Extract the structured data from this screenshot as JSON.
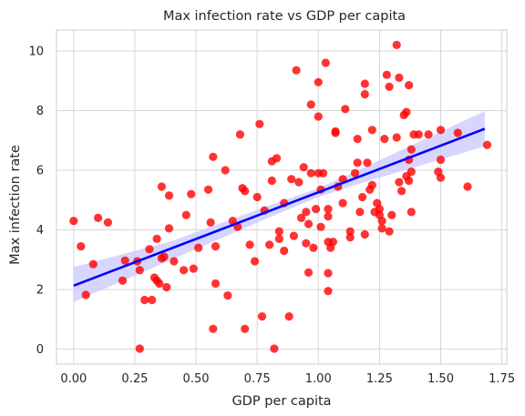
{
  "chart_data": {
    "type": "scatter",
    "title": "Max infection rate vs GDP per capita",
    "xlabel": "GDP per capita",
    "ylabel": "Max infection rate",
    "xlim": [
      -0.07,
      1.77
    ],
    "ylim": [
      -0.5,
      10.7
    ],
    "xticks": [
      0.0,
      0.25,
      0.5,
      0.75,
      1.0,
      1.25,
      1.5,
      1.75
    ],
    "xtick_labels": [
      "0.00",
      "0.25",
      "0.50",
      "0.75",
      "1.00",
      "1.25",
      "1.50",
      "1.75"
    ],
    "yticks": [
      0,
      2,
      4,
      6,
      8,
      10
    ],
    "ytick_labels": [
      "0",
      "2",
      "4",
      "6",
      "8",
      "10"
    ],
    "grid": true,
    "points": [
      [
        0.0,
        4.3
      ],
      [
        0.03,
        3.45
      ],
      [
        0.05,
        1.82
      ],
      [
        0.08,
        2.85
      ],
      [
        0.1,
        4.4
      ],
      [
        0.14,
        4.25
      ],
      [
        0.2,
        2.3
      ],
      [
        0.21,
        2.97
      ],
      [
        0.26,
        2.95
      ],
      [
        0.27,
        2.65
      ],
      [
        0.27,
        0.02
      ],
      [
        0.29,
        1.65
      ],
      [
        0.31,
        3.35
      ],
      [
        0.32,
        1.65
      ],
      [
        0.33,
        2.4
      ],
      [
        0.34,
        2.3
      ],
      [
        0.34,
        3.7
      ],
      [
        0.35,
        2.2
      ],
      [
        0.36,
        5.45
      ],
      [
        0.36,
        3.05
      ],
      [
        0.37,
        3.1
      ],
      [
        0.38,
        2.08
      ],
      [
        0.39,
        5.15
      ],
      [
        0.39,
        4.05
      ],
      [
        0.41,
        2.95
      ],
      [
        0.45,
        2.65
      ],
      [
        0.46,
        4.5
      ],
      [
        0.48,
        5.2
      ],
      [
        0.49,
        2.7
      ],
      [
        0.51,
        3.4
      ],
      [
        0.55,
        5.35
      ],
      [
        0.56,
        4.25
      ],
      [
        0.57,
        6.45
      ],
      [
        0.57,
        0.68
      ],
      [
        0.58,
        3.45
      ],
      [
        0.58,
        2.2
      ],
      [
        0.62,
        6.0
      ],
      [
        0.63,
        1.8
      ],
      [
        0.65,
        4.3
      ],
      [
        0.67,
        4.1
      ],
      [
        0.68,
        7.2
      ],
      [
        0.69,
        5.4
      ],
      [
        0.7,
        5.3
      ],
      [
        0.7,
        0.68
      ],
      [
        0.72,
        3.5
      ],
      [
        0.74,
        2.95
      ],
      [
        0.75,
        5.1
      ],
      [
        0.76,
        7.55
      ],
      [
        0.77,
        1.1
      ],
      [
        0.78,
        4.65
      ],
      [
        0.8,
        3.5
      ],
      [
        0.81,
        5.65
      ],
      [
        0.81,
        6.3
      ],
      [
        0.82,
        0.02
      ],
      [
        0.83,
        6.4
      ],
      [
        0.84,
        3.95
      ],
      [
        0.84,
        3.7
      ],
      [
        0.86,
        3.3
      ],
      [
        0.86,
        4.9
      ],
      [
        0.88,
        1.1
      ],
      [
        0.89,
        5.7
      ],
      [
        0.9,
        3.8
      ],
      [
        0.91,
        9.35
      ],
      [
        0.92,
        5.6
      ],
      [
        0.93,
        4.4
      ],
      [
        0.94,
        6.1
      ],
      [
        0.95,
        4.6
      ],
      [
        0.95,
        3.55
      ],
      [
        0.96,
        2.57
      ],
      [
        0.96,
        4.2
      ],
      [
        0.97,
        8.2
      ],
      [
        0.97,
        5.9
      ],
      [
        0.98,
        3.4
      ],
      [
        0.99,
        4.7
      ],
      [
        1.0,
        5.9
      ],
      [
        1.0,
        8.95
      ],
      [
        1.0,
        7.8
      ],
      [
        1.01,
        5.35
      ],
      [
        1.01,
        4.1
      ],
      [
        1.02,
        5.9
      ],
      [
        1.03,
        9.6
      ],
      [
        1.04,
        3.6
      ],
      [
        1.04,
        1.95
      ],
      [
        1.04,
        2.55
      ],
      [
        1.04,
        4.45
      ],
      [
        1.04,
        4.7
      ],
      [
        1.05,
        3.4
      ],
      [
        1.06,
        3.6
      ],
      [
        1.07,
        7.3
      ],
      [
        1.07,
        7.25
      ],
      [
        1.08,
        5.45
      ],
      [
        1.1,
        4.9
      ],
      [
        1.1,
        5.7
      ],
      [
        1.11,
        8.05
      ],
      [
        1.13,
        3.75
      ],
      [
        1.13,
        3.95
      ],
      [
        1.15,
        5.9
      ],
      [
        1.16,
        6.25
      ],
      [
        1.16,
        7.05
      ],
      [
        1.17,
        4.6
      ],
      [
        1.18,
        5.1
      ],
      [
        1.19,
        8.55
      ],
      [
        1.19,
        8.9
      ],
      [
        1.19,
        3.85
      ],
      [
        1.2,
        6.25
      ],
      [
        1.21,
        5.35
      ],
      [
        1.22,
        7.35
      ],
      [
        1.22,
        5.5
      ],
      [
        1.23,
        4.6
      ],
      [
        1.24,
        4.9
      ],
      [
        1.25,
        4.5
      ],
      [
        1.25,
        4.7
      ],
      [
        1.26,
        4.05
      ],
      [
        1.26,
        4.3
      ],
      [
        1.27,
        7.05
      ],
      [
        1.28,
        9.2
      ],
      [
        1.29,
        8.8
      ],
      [
        1.29,
        3.95
      ],
      [
        1.3,
        4.5
      ],
      [
        1.32,
        10.2
      ],
      [
        1.32,
        7.1
      ],
      [
        1.33,
        9.1
      ],
      [
        1.33,
        5.6
      ],
      [
        1.34,
        5.3
      ],
      [
        1.35,
        7.85
      ],
      [
        1.36,
        7.95
      ],
      [
        1.36,
        5.8
      ],
      [
        1.37,
        6.35
      ],
      [
        1.37,
        8.85
      ],
      [
        1.37,
        5.65
      ],
      [
        1.38,
        4.6
      ],
      [
        1.38,
        6.7
      ],
      [
        1.38,
        5.95
      ],
      [
        1.39,
        7.2
      ],
      [
        1.41,
        7.2
      ],
      [
        1.45,
        7.2
      ],
      [
        1.49,
        5.95
      ],
      [
        1.5,
        5.75
      ],
      [
        1.5,
        6.35
      ],
      [
        1.5,
        7.35
      ],
      [
        1.57,
        7.25
      ],
      [
        1.61,
        5.45
      ],
      [
        1.69,
        6.85
      ]
    ],
    "regression": {
      "intercept": 2.13,
      "slope": 3.13,
      "x_range": [
        0.0,
        1.68
      ]
    },
    "confidence_band": {
      "x": [
        0.0,
        0.4,
        0.8,
        1.0,
        1.2,
        1.68
      ],
      "lower": [
        1.58,
        3.0,
        4.42,
        5.1,
        5.63,
        6.8
      ],
      "upper": [
        2.75,
        3.62,
        4.82,
        5.4,
        6.14,
        7.98
      ]
    },
    "colors": {
      "points": "#ff0000",
      "line": "#0000ff",
      "band": "#c8c8ff",
      "grid": "#d6d6d6",
      "spine": "#cccccc"
    }
  }
}
